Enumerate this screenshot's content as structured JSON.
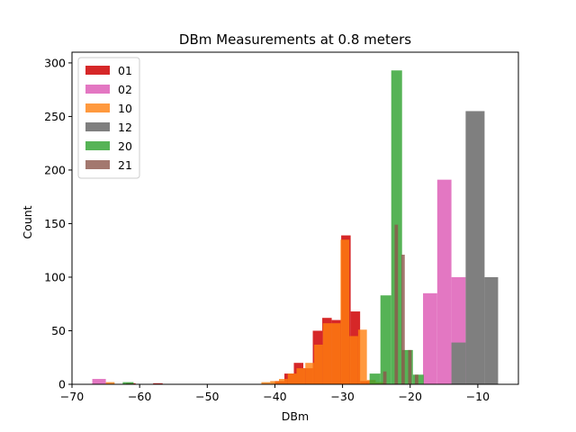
{
  "chart_data": {
    "type": "bar",
    "subtype": "overlaid-histogram",
    "title": "DBm Measurements at 0.8 meters",
    "xlabel": "DBm",
    "ylabel": "Count",
    "xlim": [
      -70,
      -4
    ],
    "ylim": [
      0,
      310
    ],
    "xticks": [
      -70,
      -60,
      -50,
      -40,
      -30,
      -20,
      -10
    ],
    "yticks": [
      0,
      50,
      100,
      150,
      200,
      250,
      300
    ],
    "grid": false,
    "legend": "top-left",
    "series": [
      {
        "name": "01",
        "color": "#d62728",
        "opacity": 1,
        "bins": [
          {
            "x0": -67,
            "x1": -65.6,
            "count": 1
          },
          {
            "x0": -62,
            "x1": -60.6,
            "count": 1
          },
          {
            "x0": -58,
            "x1": -56.6,
            "count": 1
          },
          {
            "x0": -40,
            "x1": -38.6,
            "count": 3
          },
          {
            "x0": -38.6,
            "x1": -37.2,
            "count": 10
          },
          {
            "x0": -37.2,
            "x1": -35.8,
            "count": 20
          },
          {
            "x0": -35.8,
            "x1": -34.4,
            "count": 15
          },
          {
            "x0": -34.4,
            "x1": -33.0,
            "count": 50
          },
          {
            "x0": -33.0,
            "x1": -31.6,
            "count": 62
          },
          {
            "x0": -31.6,
            "x1": -30.2,
            "count": 60
          },
          {
            "x0": -30.2,
            "x1": -28.8,
            "count": 139
          },
          {
            "x0": -28.8,
            "x1": -27.4,
            "count": 68
          },
          {
            "x0": -27.4,
            "x1": -26.0,
            "count": 3
          }
        ]
      },
      {
        "name": "02",
        "color": "#e377c2",
        "opacity": 1,
        "bins": [
          {
            "x0": -67,
            "x1": -65,
            "count": 5
          },
          {
            "x0": -18.1,
            "x1": -16.0,
            "count": 85
          },
          {
            "x0": -16.0,
            "x1": -13.9,
            "count": 191
          },
          {
            "x0": -13.9,
            "x1": -11.8,
            "count": 100
          }
        ]
      },
      {
        "name": "10",
        "color": "#ff7f0e",
        "opacity": 0.8,
        "bins": [
          {
            "x0": -65,
            "x1": -63.7,
            "count": 2
          },
          {
            "x0": -42,
            "x1": -40.7,
            "count": 2
          },
          {
            "x0": -40.7,
            "x1": -39.4,
            "count": 3
          },
          {
            "x0": -39.4,
            "x1": -38.1,
            "count": 5
          },
          {
            "x0": -38.1,
            "x1": -36.8,
            "count": 10
          },
          {
            "x0": -36.8,
            "x1": -35.5,
            "count": 15
          },
          {
            "x0": -35.5,
            "x1": -34.2,
            "count": 20
          },
          {
            "x0": -34.2,
            "x1": -32.9,
            "count": 37
          },
          {
            "x0": -32.9,
            "x1": -31.6,
            "count": 57
          },
          {
            "x0": -31.6,
            "x1": -30.3,
            "count": 57
          },
          {
            "x0": -30.3,
            "x1": -29.0,
            "count": 135
          },
          {
            "x0": -29.0,
            "x1": -27.7,
            "count": 45
          },
          {
            "x0": -27.7,
            "x1": -26.4,
            "count": 51
          },
          {
            "x0": -26.4,
            "x1": -25.1,
            "count": 4
          },
          {
            "x0": -25.1,
            "x1": -23.8,
            "count": 2
          }
        ]
      },
      {
        "name": "12",
        "color": "#7f7f7f",
        "opacity": 1,
        "bins": [
          {
            "x0": -13.9,
            "x1": -11.8,
            "count": 39
          },
          {
            "x0": -11.8,
            "x1": -9.0,
            "count": 255
          },
          {
            "x0": -9.0,
            "x1": -7.0,
            "count": 100
          }
        ]
      },
      {
        "name": "20",
        "color": "#2ca02c",
        "opacity": 0.8,
        "bins": [
          {
            "x0": -62.5,
            "x1": -60.9,
            "count": 2
          },
          {
            "x0": -26.0,
            "x1": -24.4,
            "count": 10
          },
          {
            "x0": -24.4,
            "x1": -22.8,
            "count": 83
          },
          {
            "x0": -22.8,
            "x1": -21.2,
            "count": 293
          },
          {
            "x0": -21.2,
            "x1": -19.6,
            "count": 32
          },
          {
            "x0": -19.6,
            "x1": -18.0,
            "count": 9
          }
        ]
      },
      {
        "name": "21",
        "color": "#8c564b",
        "opacity": 0.8,
        "bins": [
          {
            "x0": -24.0,
            "x1": -23.5,
            "count": 12
          },
          {
            "x0": -22.3,
            "x1": -21.8,
            "count": 149
          },
          {
            "x0": -21.3,
            "x1": -20.8,
            "count": 121
          },
          {
            "x0": -20.3,
            "x1": -19.8,
            "count": 32
          },
          {
            "x0": -19.3,
            "x1": -18.8,
            "count": 9
          }
        ]
      }
    ]
  }
}
